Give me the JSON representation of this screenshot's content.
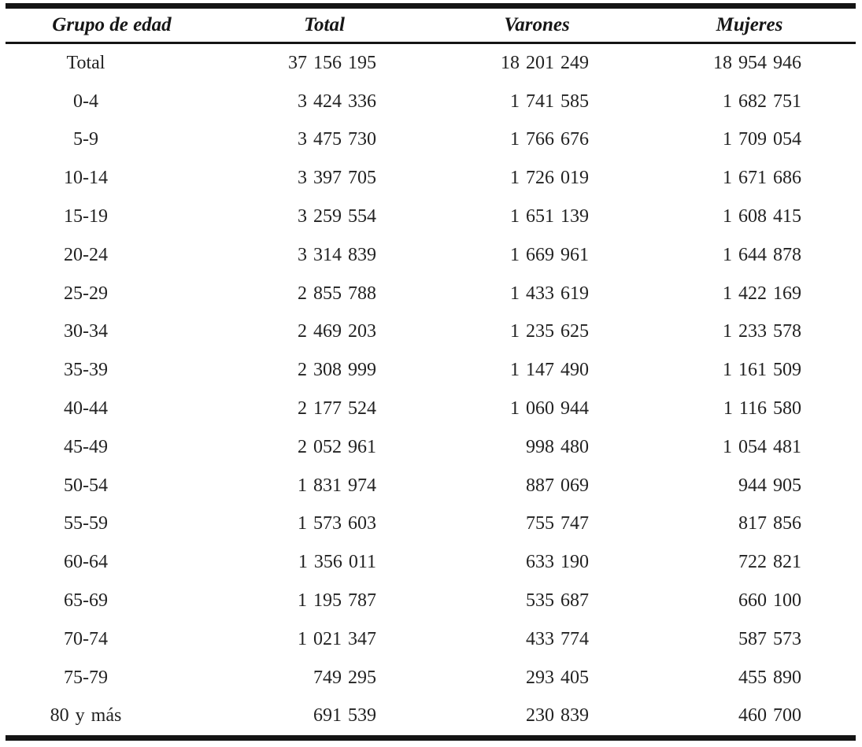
{
  "document": {
    "kind": "population-by-age-table",
    "text_color": "#222222",
    "rule_color": "#141414",
    "background": "#ffffff"
  },
  "table": {
    "columns": [
      "Grupo de edad",
      "Total",
      "Varones",
      "Mujeres"
    ],
    "rows": [
      [
        "Total",
        "37 156 195",
        "18 201 249",
        "18 954 946"
      ],
      [
        "0-4",
        "3 424 336",
        "1 741 585",
        "1 682 751"
      ],
      [
        "5-9",
        "3 475 730",
        "1 766 676",
        "1 709 054"
      ],
      [
        "10-14",
        "3 397 705",
        "1 726 019",
        "1 671 686"
      ],
      [
        "15-19",
        "3 259 554",
        "1 651 139",
        "1 608 415"
      ],
      [
        "20-24",
        "3 314 839",
        "1 669 961",
        "1 644 878"
      ],
      [
        "25-29",
        "2 855 788",
        "1 433 619",
        "1 422 169"
      ],
      [
        "30-34",
        "2 469 203",
        "1 235 625",
        "1 233 578"
      ],
      [
        "35-39",
        "2 308 999",
        "1 147 490",
        "1 161 509"
      ],
      [
        "40-44",
        "2 177 524",
        "1 060 944",
        "1 116 580"
      ],
      [
        "45-49",
        "2 052 961",
        "998 480",
        "1 054 481"
      ],
      [
        "50-54",
        "1 831 974",
        "887 069",
        "944 905"
      ],
      [
        "55-59",
        "1 573 603",
        "755 747",
        "817 856"
      ],
      [
        "60-64",
        "1 356 011",
        "633 190",
        "722 821"
      ],
      [
        "65-69",
        "1 195 787",
        "535 687",
        "660 100"
      ],
      [
        "70-74",
        "1 021 347",
        "433 774",
        "587 573"
      ],
      [
        "75-79",
        "749 295",
        "293 405",
        "455 890"
      ],
      [
        "80 y más",
        "691 539",
        "230 839",
        "460 700"
      ]
    ]
  }
}
